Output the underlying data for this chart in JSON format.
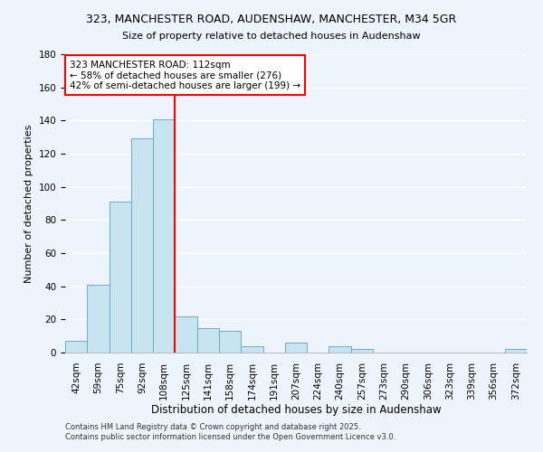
{
  "title": "323, MANCHESTER ROAD, AUDENSHAW, MANCHESTER, M34 5GR",
  "subtitle": "Size of property relative to detached houses in Audenshaw",
  "xlabel": "Distribution of detached houses by size in Audenshaw",
  "ylabel": "Number of detached properties",
  "bar_labels": [
    "42sqm",
    "59sqm",
    "75sqm",
    "92sqm",
    "108sqm",
    "125sqm",
    "141sqm",
    "158sqm",
    "174sqm",
    "191sqm",
    "207sqm",
    "224sqm",
    "240sqm",
    "257sqm",
    "273sqm",
    "290sqm",
    "306sqm",
    "323sqm",
    "339sqm",
    "356sqm",
    "372sqm"
  ],
  "bar_values": [
    7,
    41,
    91,
    129,
    141,
    22,
    15,
    13,
    4,
    0,
    6,
    0,
    4,
    2,
    0,
    0,
    0,
    0,
    0,
    0,
    2
  ],
  "bar_color": "#c8e4f0",
  "bar_edge_color": "#6aaccc",
  "vline_x_index": 4,
  "vline_color": "red",
  "ylim": [
    0,
    180
  ],
  "yticks": [
    0,
    20,
    40,
    60,
    80,
    100,
    120,
    140,
    160,
    180
  ],
  "annotation_title": "323 MANCHESTER ROAD: 112sqm",
  "annotation_line1": "← 58% of detached houses are smaller (276)",
  "annotation_line2": "42% of semi-detached houses are larger (199) →",
  "annotation_box_facecolor": "#ffffff",
  "annotation_box_edgecolor": "red",
  "footer1": "Contains HM Land Registry data © Crown copyright and database right 2025.",
  "footer2": "Contains public sector information licensed under the Open Government Licence v3.0.",
  "background_color": "#eef4fb",
  "grid_color": "#ffffff",
  "title_fontsize": 9,
  "subtitle_fontsize": 8,
  "ylabel_fontsize": 8,
  "xlabel_fontsize": 8.5,
  "tick_fontsize": 7.5,
  "footer_fontsize": 6,
  "annotation_fontsize": 7.5
}
